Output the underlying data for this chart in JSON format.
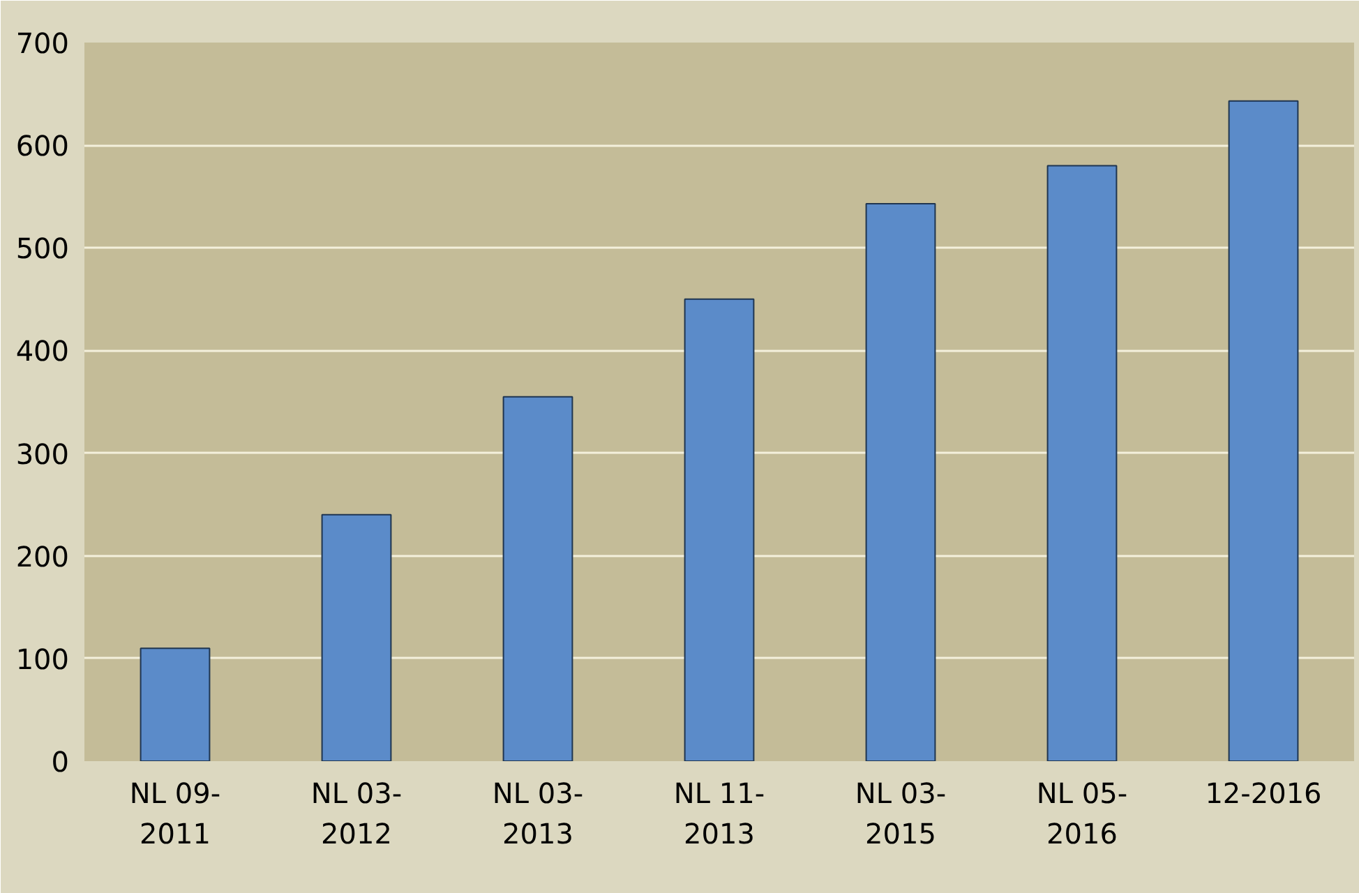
{
  "chart_data": {
    "type": "bar",
    "categories": [
      "NL 09-2011",
      "NL 03-2012",
      "NL 03-2013",
      "NL 11-2013",
      "NL 03-2015",
      "NL 05-2016",
      "12-2016"
    ],
    "series": [
      {
        "color": "#5b8bc9",
        "values": [
          110,
          240,
          355,
          450,
          543,
          580,
          643
        ]
      }
    ],
    "ylim": [
      0,
      700
    ],
    "yticks": [
      0,
      100,
      200,
      300,
      400,
      500,
      600,
      700
    ],
    "grid": "y"
  }
}
